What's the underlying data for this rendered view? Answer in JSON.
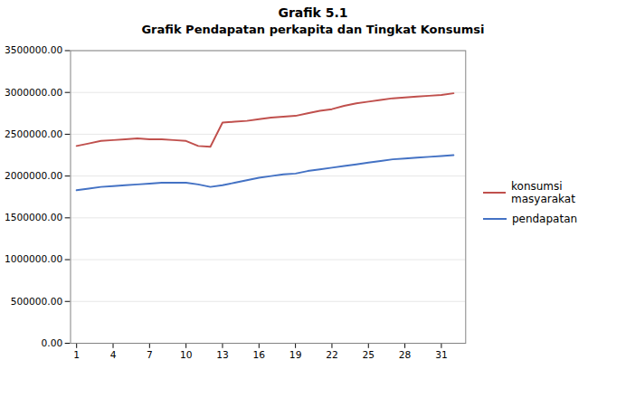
{
  "chart_data": {
    "type": "line",
    "title": "Grafik 5.1",
    "subtitle": "Grafik Pendapatan perkapita dan Tingkat Konsumsi",
    "x": [
      1,
      2,
      3,
      4,
      5,
      6,
      7,
      8,
      9,
      10,
      11,
      12,
      13,
      14,
      15,
      16,
      17,
      18,
      19,
      20,
      21,
      22,
      23,
      24,
      25,
      26,
      27,
      28,
      29,
      30,
      31,
      32
    ],
    "series": [
      {
        "name": "konsumsi masyarakat",
        "color": "#c0504d",
        "values": [
          2360000,
          2390000,
          2420000,
          2430000,
          2440000,
          2450000,
          2440000,
          2440000,
          2430000,
          2420000,
          2360000,
          2350000,
          2640000,
          2650000,
          2660000,
          2680000,
          2700000,
          2710000,
          2720000,
          2750000,
          2780000,
          2800000,
          2840000,
          2870000,
          2890000,
          2910000,
          2930000,
          2940000,
          2950000,
          2960000,
          2970000,
          2990000
        ]
      },
      {
        "name": "pendapatan",
        "color": "#4472c4",
        "values": [
          1830000,
          1850000,
          1870000,
          1880000,
          1890000,
          1900000,
          1910000,
          1920000,
          1920000,
          1920000,
          1900000,
          1870000,
          1890000,
          1920000,
          1950000,
          1980000,
          2000000,
          2020000,
          2030000,
          2060000,
          2080000,
          2100000,
          2120000,
          2140000,
          2160000,
          2180000,
          2200000,
          2210000,
          2220000,
          2230000,
          2240000,
          2250000
        ]
      }
    ],
    "xlim": [
      0.5,
      33
    ],
    "xticks": [
      1,
      4,
      7,
      10,
      13,
      16,
      19,
      22,
      25,
      28,
      31
    ],
    "ylim": [
      0,
      3500000
    ],
    "yticks": [
      {
        "value": 0,
        "label": "0.00"
      },
      {
        "value": 500000,
        "label": "500000.00"
      },
      {
        "value": 1000000,
        "label": "1000000.00"
      },
      {
        "value": 1500000,
        "label": "1500000.00"
      },
      {
        "value": 2000000,
        "label": "2000000.00"
      },
      {
        "value": 2500000,
        "label": "2500000.00"
      },
      {
        "value": 3000000,
        "label": "3000000.00"
      },
      {
        "value": 3500000,
        "label": "3500000.00"
      }
    ],
    "grid": "y",
    "legend": "right"
  }
}
